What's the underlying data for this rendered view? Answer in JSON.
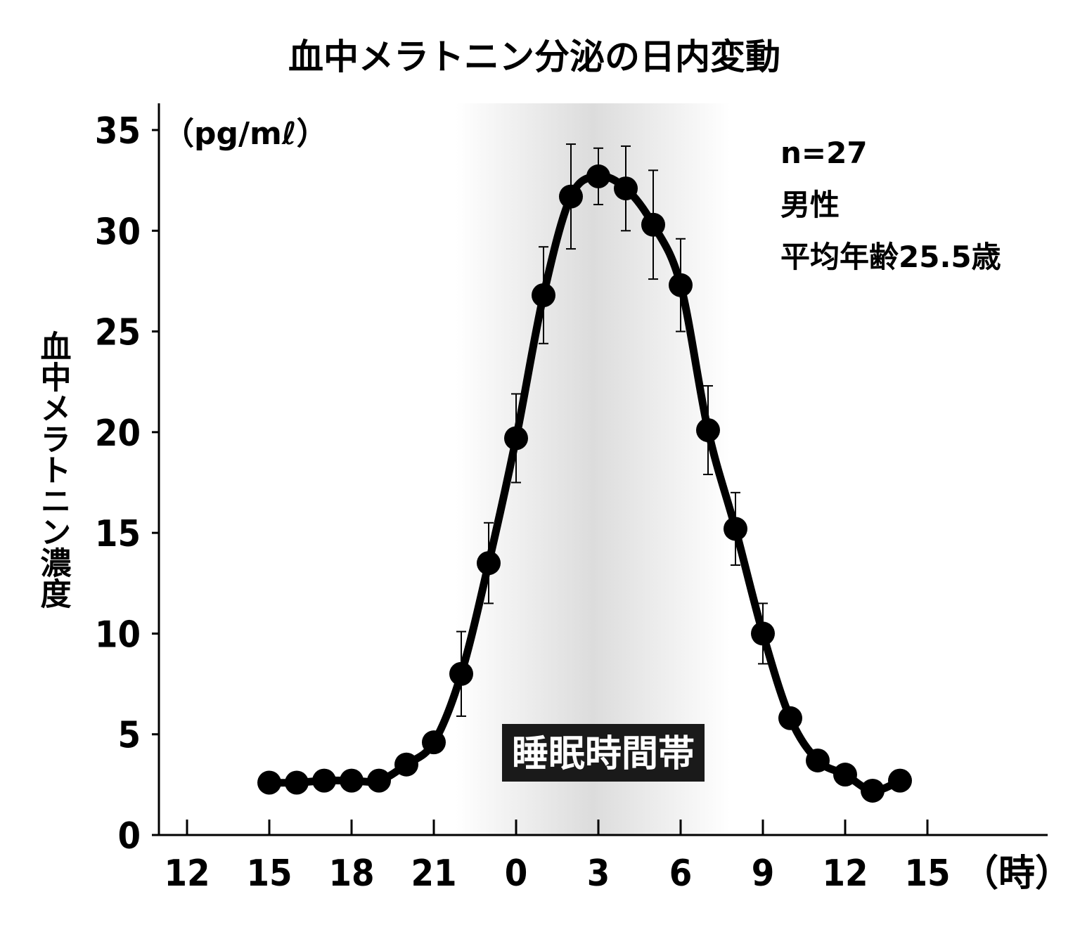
{
  "chart_data": {
    "type": "line",
    "title": "血中メラトニン分泌の日内変動",
    "ylabel": "血中メラトニン濃度",
    "yunit": "（pg/mℓ）",
    "xunit": "（時）",
    "x_ticks": [
      "12",
      "15",
      "18",
      "21",
      "0",
      "3",
      "6",
      "9",
      "12",
      "15"
    ],
    "y_ticks": [
      "0",
      "5",
      "10",
      "15",
      "20",
      "25",
      "30",
      "35"
    ],
    "ylim": [
      0,
      35
    ],
    "x_hour_range": [
      12,
      39
    ],
    "grid": false,
    "info_lines": [
      "n=27",
      "男性",
      "平均年齢25.5歳"
    ],
    "shaded_band": {
      "label": "睡眠時間帯",
      "start_hour": 21.8,
      "end_hour": 31.8
    },
    "series": [
      {
        "x": [
          15,
          16,
          17,
          18,
          19,
          20,
          21,
          22,
          23,
          24,
          25,
          26,
          27,
          28,
          29,
          30,
          31,
          32,
          33,
          34,
          35,
          36,
          37,
          38
        ],
        "values": [
          2.6,
          2.6,
          2.7,
          2.7,
          2.7,
          3.5,
          4.6,
          8.0,
          13.5,
          19.7,
          26.8,
          31.7,
          32.7,
          32.1,
          30.3,
          27.3,
          20.1,
          15.2,
          10.0,
          5.8,
          3.7,
          3.0,
          2.2,
          2.7
        ],
        "error": [
          null,
          null,
          null,
          null,
          null,
          null,
          null,
          2.1,
          2.0,
          2.2,
          2.4,
          2.6,
          1.4,
          2.1,
          2.7,
          2.3,
          2.2,
          1.8,
          1.5,
          null,
          null,
          null,
          null,
          null
        ]
      }
    ]
  }
}
